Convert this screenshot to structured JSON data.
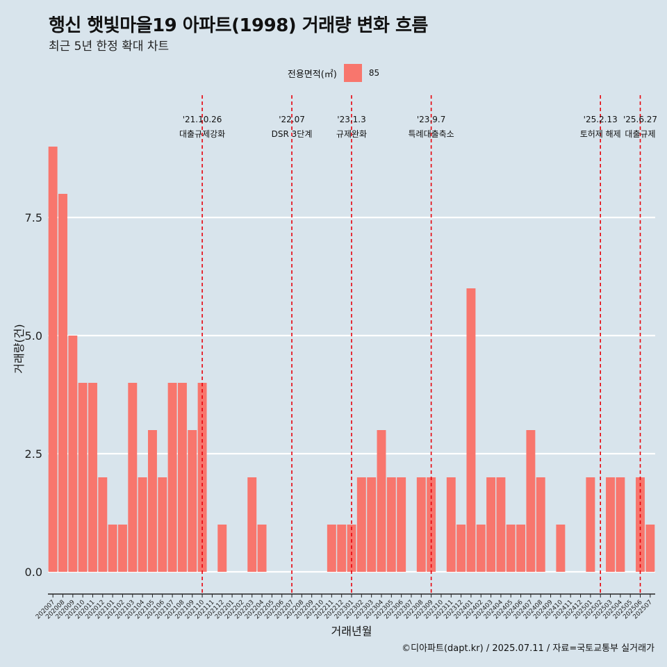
{
  "title": "행신 햇빛마을19 아파트(1998) 거래량 변화 흐름",
  "subtitle": "최근 5년 한정 확대 차트",
  "legend": {
    "title": "전용면적(㎡)",
    "label": "85",
    "color": "#f8766d"
  },
  "caption": "©디아파트(dapt.kr) / 2025.07.11 / 자료=국토교통부 실거래가",
  "colors": {
    "background": "#d8e4ec",
    "bar": "#f8766d",
    "event_line": "#e8000b",
    "grid": "#ffffff"
  },
  "chart_data": {
    "type": "bar",
    "xlabel": "거래년월",
    "ylabel": "거래량(건)",
    "ylim": [
      0,
      9
    ],
    "yticks": [
      0.0,
      2.5,
      5.0,
      7.5
    ],
    "ytick_labels": [
      "0.0",
      "2.5",
      "5.0",
      "7.5"
    ],
    "grid": true,
    "legend_position": "top",
    "categories": [
      "202007",
      "202008",
      "202009",
      "202010",
      "202011",
      "202012",
      "202101",
      "202102",
      "202103",
      "202104",
      "202105",
      "202106",
      "202107",
      "202108",
      "202109",
      "202110",
      "202111",
      "202112",
      "202201",
      "202202",
      "202203",
      "202204",
      "202205",
      "202206",
      "202207",
      "202208",
      "202209",
      "202210",
      "202211",
      "202212",
      "202301",
      "202302",
      "202303",
      "202304",
      "202305",
      "202306",
      "202307",
      "202308",
      "202309",
      "202310",
      "202311",
      "202312",
      "202401",
      "202402",
      "202403",
      "202404",
      "202405",
      "202406",
      "202407",
      "202408",
      "202409",
      "202410",
      "202411",
      "202412",
      "202501",
      "202502",
      "202503",
      "202504",
      "202505",
      "202506",
      "202507"
    ],
    "series": [
      {
        "name": "85",
        "values": [
          9,
          8,
          5,
          4,
          4,
          2,
          1,
          1,
          4,
          2,
          3,
          2,
          4,
          4,
          3,
          4,
          0,
          1,
          0,
          0,
          2,
          1,
          0,
          0,
          0,
          0,
          0,
          0,
          1,
          1,
          1,
          2,
          2,
          3,
          2,
          2,
          0,
          2,
          2,
          0,
          2,
          1,
          6,
          1,
          2,
          2,
          1,
          1,
          3,
          2,
          0,
          1,
          0,
          0,
          2,
          0,
          2,
          2,
          0,
          2,
          1
        ]
      }
    ],
    "events": [
      {
        "category": "202110",
        "date": "'21.10.26",
        "label": "대출규제강화"
      },
      {
        "category": "202207",
        "date": "'22.07",
        "label": "DSR 3단계"
      },
      {
        "category": "202301",
        "date": "'23.1.3",
        "label": "규제완화"
      },
      {
        "category": "202309",
        "date": "'23.9.7",
        "label": "특례대출축소"
      },
      {
        "category": "202502",
        "date": "'25.2.13",
        "label": "토허제 해제"
      },
      {
        "category": "202506",
        "date": "'25.6.27",
        "label": "대출규제"
      }
    ]
  }
}
